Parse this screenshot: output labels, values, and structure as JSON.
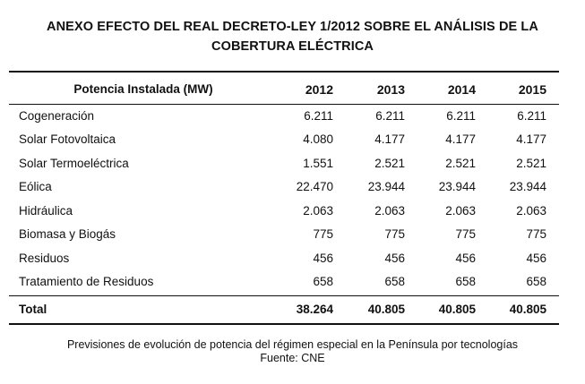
{
  "title": {
    "line1": "ANEXO  EFECTO DEL REAL DECRETO-LEY 1/2012  SOBRE EL ANÁLISIS DE LA",
    "line2": "COBERTURA  ELÉCTRICA"
  },
  "table": {
    "header": {
      "label": "Potencia Instalada (MW)",
      "years": [
        "2012",
        "2013",
        "2014",
        "2015"
      ]
    },
    "rows": [
      {
        "label": "Cogeneración",
        "values": [
          "6.211",
          "6.211",
          "6.211",
          "6.211"
        ]
      },
      {
        "label": "Solar Fotovoltaica",
        "values": [
          "4.080",
          "4.177",
          "4.177",
          "4.177"
        ]
      },
      {
        "label": "Solar Termoeléctrica",
        "values": [
          "1.551",
          "2.521",
          "2.521",
          "2.521"
        ]
      },
      {
        "label": "Eólica",
        "values": [
          "22.470",
          "23.944",
          "23.944",
          "23.944"
        ]
      },
      {
        "label": "Hidráulica",
        "values": [
          "2.063",
          "2.063",
          "2.063",
          "2.063"
        ]
      },
      {
        "label": "Biomasa y Biogás",
        "values": [
          "775",
          "775",
          "775",
          "775"
        ]
      },
      {
        "label": "Residuos",
        "values": [
          "456",
          "456",
          "456",
          "456"
        ]
      },
      {
        "label": "Tratamiento de Residuos",
        "values": [
          "658",
          "658",
          "658",
          "658"
        ]
      }
    ],
    "total": {
      "label": "Total",
      "values": [
        "38.264",
        "40.805",
        "40.805",
        "40.805"
      ]
    }
  },
  "caption": {
    "line1": "Previsiones de evolución de potencia del régimen especial en la Península por tecnologías",
    "line2": "Fuente: CNE"
  }
}
